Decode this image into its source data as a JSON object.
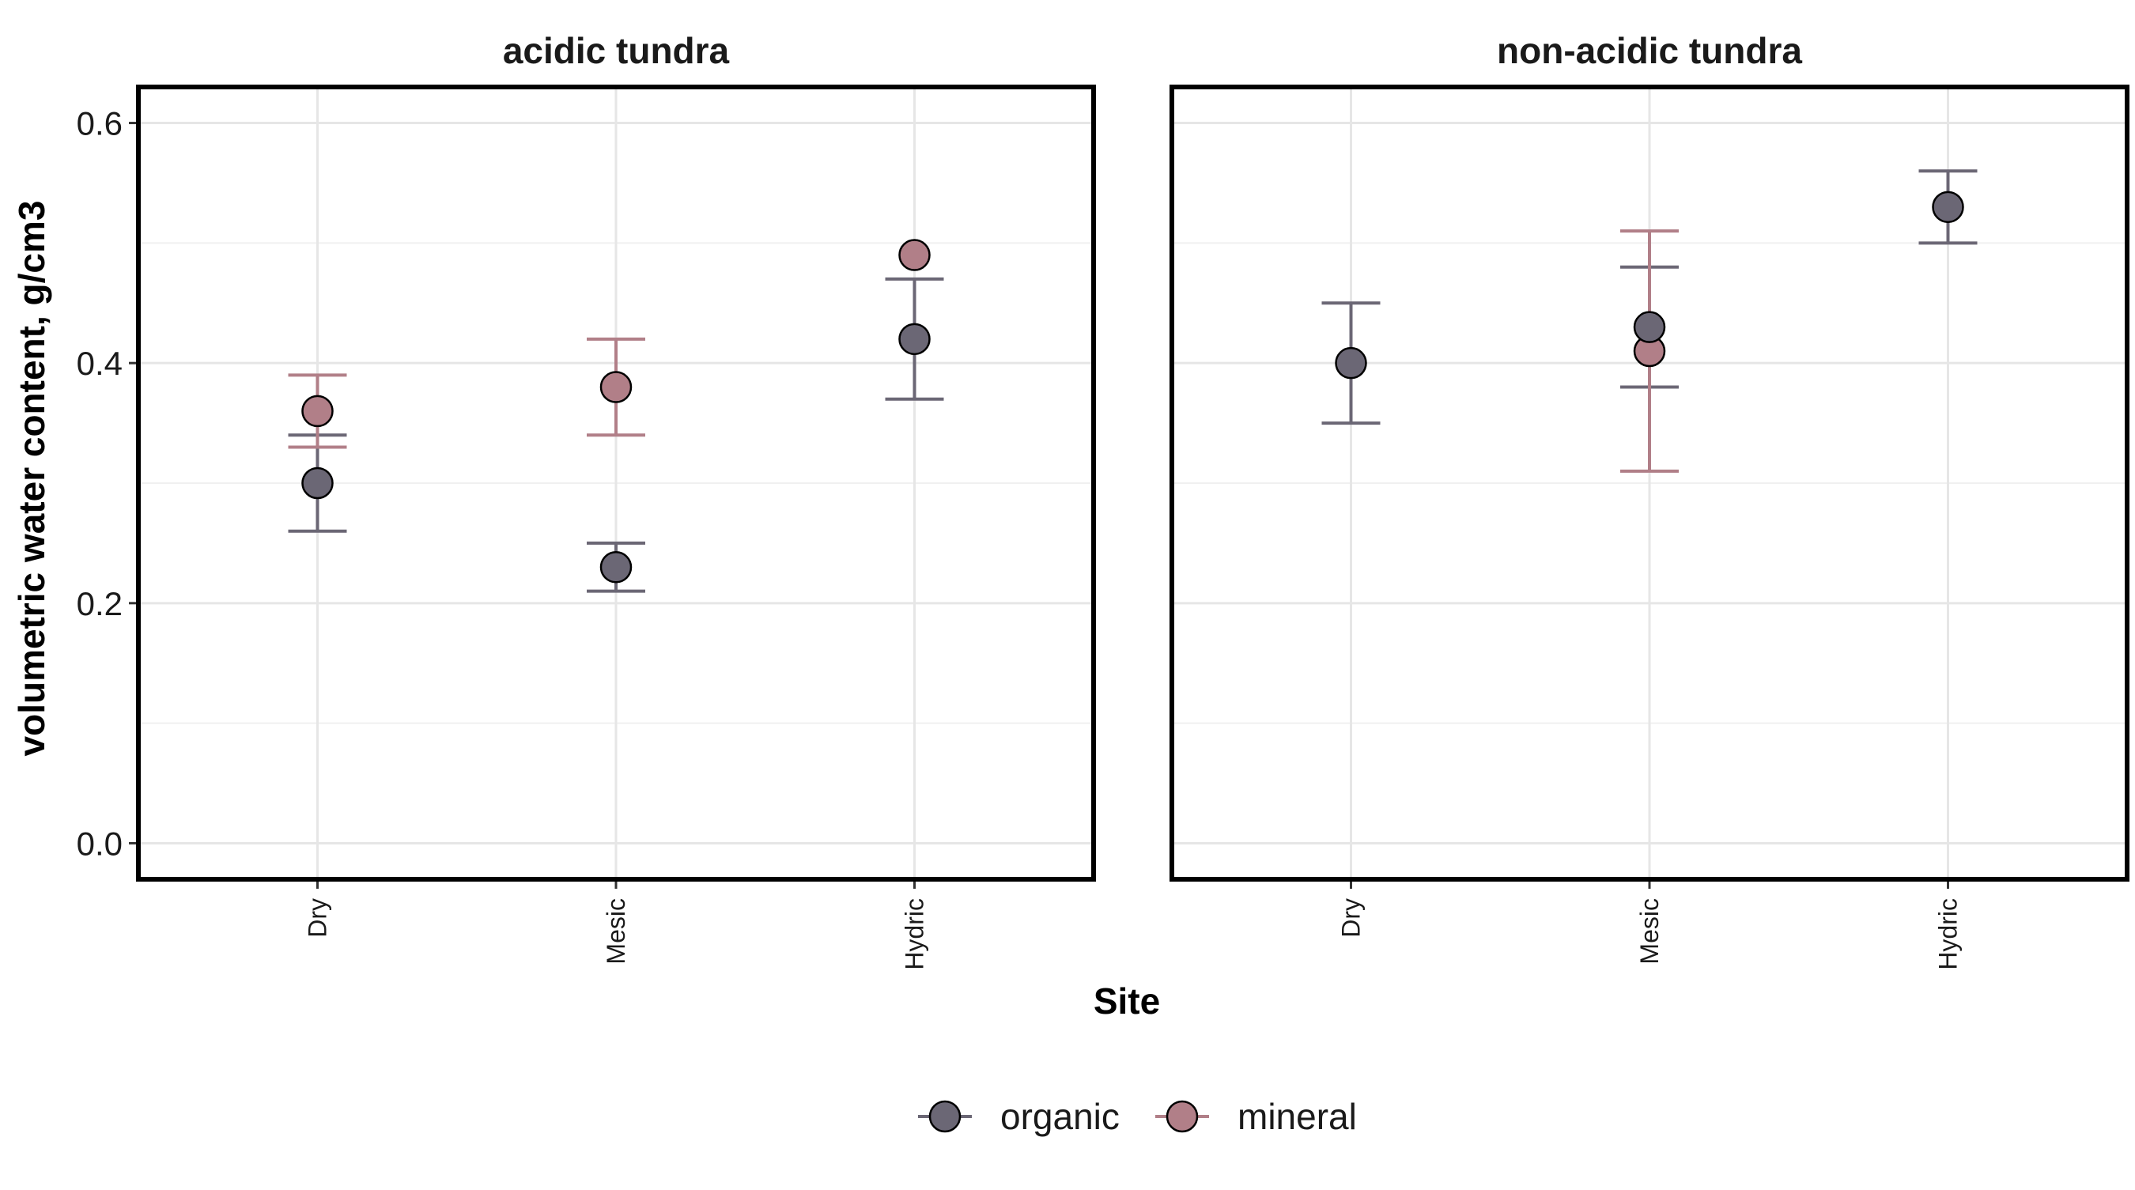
{
  "chart_data": {
    "type": "scatter",
    "ylabel": "volumetric water content, g/cm3",
    "xlabel": "Site",
    "categories": [
      "Dry",
      "Mesic",
      "Hydric"
    ],
    "ylim": [
      -0.03,
      0.63
    ],
    "yticks": [
      0.0,
      0.2,
      0.4,
      0.6
    ],
    "ytick_labels": [
      "0.0",
      "0.2",
      "0.4",
      "0.6"
    ],
    "grid": true,
    "legend_position": "bottom",
    "panels": [
      {
        "title": "acidic tundra",
        "series": [
          {
            "name": "organic",
            "points": [
              {
                "x": "Dry",
                "y": 0.3,
                "lo": 0.26,
                "hi": 0.34
              },
              {
                "x": "Mesic",
                "y": 0.23,
                "lo": 0.21,
                "hi": 0.25
              },
              {
                "x": "Hydric",
                "y": 0.42,
                "lo": 0.37,
                "hi": 0.47
              }
            ]
          },
          {
            "name": "mineral",
            "points": [
              {
                "x": "Dry",
                "y": 0.36,
                "lo": 0.33,
                "hi": 0.39
              },
              {
                "x": "Mesic",
                "y": 0.38,
                "lo": 0.34,
                "hi": 0.42
              },
              {
                "x": "Hydric",
                "y": 0.49,
                "lo": null,
                "hi": null
              }
            ]
          }
        ]
      },
      {
        "title": "non-acidic tundra",
        "series": [
          {
            "name": "organic",
            "points": [
              {
                "x": "Dry",
                "y": 0.4,
                "lo": 0.35,
                "hi": 0.45
              },
              {
                "x": "Mesic",
                "y": 0.43,
                "lo": 0.38,
                "hi": 0.48
              },
              {
                "x": "Hydric",
                "y": 0.53,
                "lo": 0.5,
                "hi": 0.56
              }
            ]
          },
          {
            "name": "mineral",
            "points": [
              {
                "x": "Mesic",
                "y": 0.41,
                "lo": 0.31,
                "hi": 0.51
              }
            ]
          }
        ]
      }
    ],
    "legend": [
      {
        "name": "organic",
        "color": "#6b6775"
      },
      {
        "name": "mineral",
        "color": "#b17f88"
      }
    ],
    "colors": {
      "organic": "#6b6775",
      "mineral": "#b17f88"
    }
  }
}
